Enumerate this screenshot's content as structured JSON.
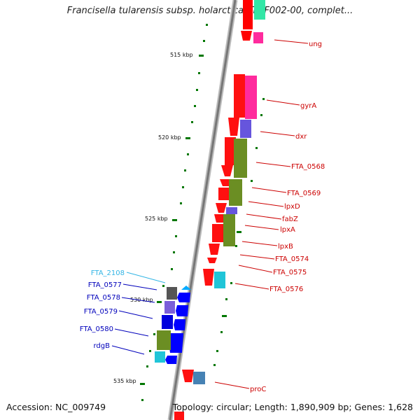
{
  "title": "Francisella tularensis subsp. holarctica FTNF002-00, complet...",
  "footer": {
    "accession": "Accession: NC_009749",
    "topology": "Topology: circular; Length: 1,890,909 bp; Genes: 1,628"
  },
  "scale_labels": [
    "515 kbp",
    "520 kbp",
    "525 kbp",
    "530 kbp",
    "535 kbp"
  ],
  "genes_right": [
    "ung",
    "gyrA",
    "dxr",
    "FTA_0568",
    "FTA_0569",
    "lpxD",
    "fabZ",
    "lpxA",
    "lpxB",
    "FTA_0574",
    "FTA_0575",
    "FTA_0576",
    "proC"
  ],
  "genes_left": [
    "FTA_2108",
    "FTA_0577",
    "FTA_0578",
    "FTA_0579",
    "FTA_0580",
    "rdgB"
  ],
  "colors": {
    "forward_gene": "#ff0000",
    "reverse_gene": "#0000ff",
    "label_forward": "#cc0000",
    "label_reverse": "#0000bb",
    "label_rna": "#33b5e5",
    "backbone": "#888888",
    "tick": "#007700"
  }
}
